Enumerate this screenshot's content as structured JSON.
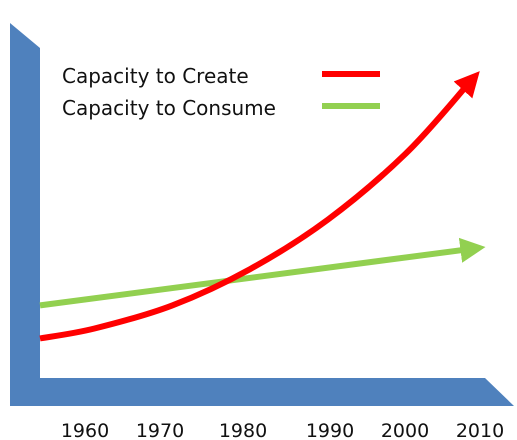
{
  "chart_data": {
    "type": "line",
    "title": "",
    "xlabel": "",
    "ylabel": "",
    "x_ticks": [
      "1960",
      "1970",
      "1980",
      "1990",
      "2000",
      "2010"
    ],
    "xlim": [
      1953,
      2008
    ],
    "ylim": [
      0,
      100
    ],
    "grid": false,
    "legend_position": "top-left",
    "series": [
      {
        "name": "Capacity to Create",
        "color": "#ff0000",
        "x": [
          1953,
          1960,
          1970,
          1980,
          1990,
          2000,
          2008
        ],
        "y": [
          12,
          15,
          22,
          33,
          48,
          68,
          89
        ],
        "style": "curved-arrow"
      },
      {
        "name": "Capacity to Consume",
        "color": "#92d050",
        "x": [
          1953,
          2008
        ],
        "y": [
          22,
          39
        ],
        "style": "straight-arrow"
      }
    ],
    "axis_color": "#4f81bd"
  }
}
